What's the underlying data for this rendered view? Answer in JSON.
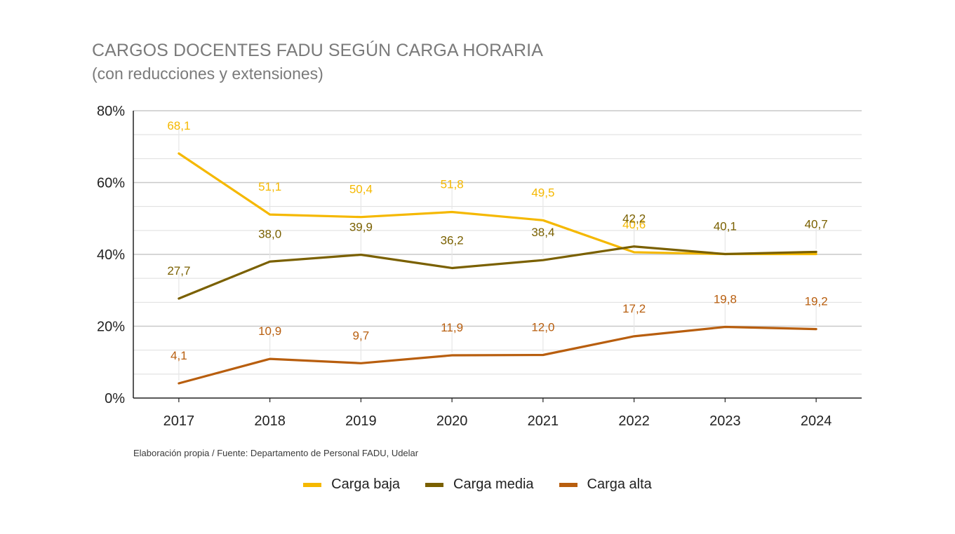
{
  "title": "CARGOS DOCENTES FADU SEGÚN CARGA HORARIA",
  "subtitle": "(con reducciones y extensiones)",
  "source": "Elaboración propia / Fuente: Departamento de Personal FADU, Udelar",
  "chart_data": {
    "type": "line",
    "categories": [
      "2017",
      "2018",
      "2019",
      "2020",
      "2021",
      "2022",
      "2023",
      "2024"
    ],
    "ylim": [
      0,
      80
    ],
    "yticks": [
      "0%",
      "20%",
      "40%",
      "60%",
      "80%"
    ],
    "ytick_values": [
      0,
      20,
      40,
      60,
      80
    ],
    "grid": true,
    "legend_position": "bottom",
    "series": [
      {
        "name": "Carga baja",
        "color": "#f5b800",
        "values": [
          68.1,
          51.1,
          50.4,
          51.8,
          49.5,
          40.6,
          40.1,
          40.1
        ],
        "labels": [
          "68,1",
          "51,1",
          "50,4",
          "51,8",
          "49,5",
          "40,6",
          "",
          ""
        ]
      },
      {
        "name": "Carga media",
        "color": "#7a6000",
        "values": [
          27.7,
          38.0,
          39.9,
          36.2,
          38.4,
          42.2,
          40.1,
          40.7
        ],
        "labels": [
          "27,7",
          "38,0",
          "39,9",
          "36,2",
          "38,4",
          "42,2",
          "40,1",
          "40,7"
        ]
      },
      {
        "name": "Carga alta",
        "color": "#b85e0e",
        "values": [
          4.1,
          10.9,
          9.7,
          11.9,
          12.0,
          17.2,
          19.8,
          19.2
        ],
        "labels": [
          "4,1",
          "10,9",
          "9,7",
          "11,9",
          "12,0",
          "17,2",
          "19,8",
          "19,2"
        ]
      }
    ]
  }
}
